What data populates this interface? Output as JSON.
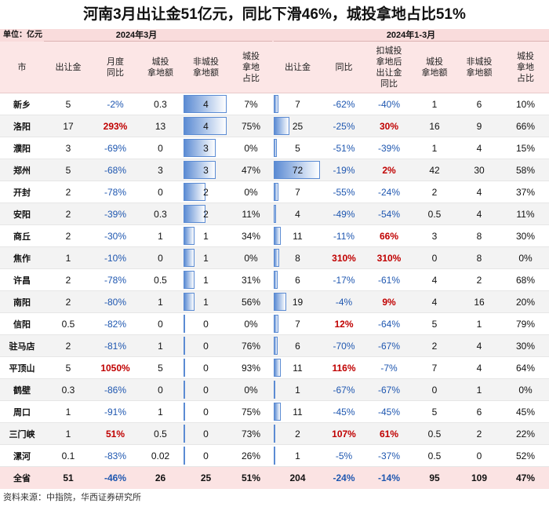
{
  "chart_data": {
    "type": "table",
    "title": "河南3月出让金51亿元，同比下滑46%，城投拿地占比51%",
    "unit": "单位：亿元",
    "row_header": "市",
    "groups": [
      {
        "label": "2024年3月",
        "columns": [
          {
            "label": "出让金"
          },
          {
            "label": "月度\n同比"
          },
          {
            "label": "城投\n拿地额"
          },
          {
            "label": "非城投\n拿地额",
            "data_bar": true
          },
          {
            "label": "城投\n拿地\n占比"
          }
        ]
      },
      {
        "label": "2024年1-3月",
        "columns": [
          {
            "label": "出让金",
            "data_bar": true
          },
          {
            "label": "同比"
          },
          {
            "label": "扣城投\n拿地后\n出让金\n同比"
          },
          {
            "label": "城投\n拿地额"
          },
          {
            "label": "非城投\n拿地额"
          },
          {
            "label": "城投\n拿地\n占比"
          }
        ]
      }
    ],
    "rows": [
      [
        "新乡",
        "5",
        "-2%",
        "0.3",
        "4",
        "7%",
        "7",
        "-62%",
        "-40%",
        "1",
        "6",
        "10%"
      ],
      [
        "洛阳",
        "17",
        "293%",
        "13",
        "4",
        "75%",
        "25",
        "-25%",
        "30%",
        "16",
        "9",
        "66%"
      ],
      [
        "濮阳",
        "3",
        "-69%",
        "0",
        "3",
        "0%",
        "5",
        "-51%",
        "-39%",
        "1",
        "4",
        "15%"
      ],
      [
        "郑州",
        "5",
        "-68%",
        "3",
        "3",
        "47%",
        "72",
        "-19%",
        "2%",
        "42",
        "30",
        "58%"
      ],
      [
        "开封",
        "2",
        "-78%",
        "0",
        "2",
        "0%",
        "7",
        "-55%",
        "-24%",
        "2",
        "4",
        "37%"
      ],
      [
        "安阳",
        "2",
        "-39%",
        "0.3",
        "2",
        "11%",
        "4",
        "-49%",
        "-54%",
        "0.5",
        "4",
        "11%"
      ],
      [
        "商丘",
        "2",
        "-30%",
        "1",
        "1",
        "34%",
        "11",
        "-11%",
        "66%",
        "3",
        "8",
        "30%"
      ],
      [
        "焦作",
        "1",
        "-10%",
        "0",
        "1",
        "0%",
        "8",
        "310%",
        "310%",
        "0",
        "8",
        "0%"
      ],
      [
        "许昌",
        "2",
        "-78%",
        "0.5",
        "1",
        "31%",
        "6",
        "-17%",
        "-61%",
        "4",
        "2",
        "68%"
      ],
      [
        "南阳",
        "2",
        "-80%",
        "1",
        "1",
        "56%",
        "19",
        "-4%",
        "9%",
        "4",
        "16",
        "20%"
      ],
      [
        "信阳",
        "0.5",
        "-82%",
        "0",
        "0",
        "0%",
        "7",
        "12%",
        "-64%",
        "5",
        "1",
        "79%"
      ],
      [
        "驻马店",
        "2",
        "-81%",
        "1",
        "0",
        "76%",
        "6",
        "-70%",
        "-67%",
        "2",
        "4",
        "30%"
      ],
      [
        "平顶山",
        "5",
        "1050%",
        "5",
        "0",
        "93%",
        "11",
        "116%",
        "-7%",
        "7",
        "4",
        "64%"
      ],
      [
        "鹤壁",
        "0.3",
        "-86%",
        "0",
        "0",
        "0%",
        "1",
        "-67%",
        "-67%",
        "0",
        "1",
        "0%"
      ],
      [
        "周口",
        "1",
        "-91%",
        "1",
        "0",
        "75%",
        "11",
        "-45%",
        "-45%",
        "5",
        "6",
        "45%"
      ],
      [
        "三门峡",
        "1",
        "51%",
        "0.5",
        "0",
        "73%",
        "2",
        "107%",
        "61%",
        "0.5",
        "2",
        "22%"
      ],
      [
        "漯河",
        "0.1",
        "-83%",
        "0.02",
        "0",
        "26%",
        "1",
        "-5%",
        "-37%",
        "0.5",
        "0",
        "52%"
      ]
    ],
    "total": [
      "全省",
      "51",
      "-46%",
      "26",
      "25",
      "51%",
      "204",
      "-24%",
      "-14%",
      "95",
      "109",
      "47%"
    ],
    "source": "资料来源：中指院，华西证券研究所"
  },
  "colors": {
    "positive": "#c00000",
    "negative": "#1f57b0",
    "data_bar": "#5b8bd3"
  }
}
